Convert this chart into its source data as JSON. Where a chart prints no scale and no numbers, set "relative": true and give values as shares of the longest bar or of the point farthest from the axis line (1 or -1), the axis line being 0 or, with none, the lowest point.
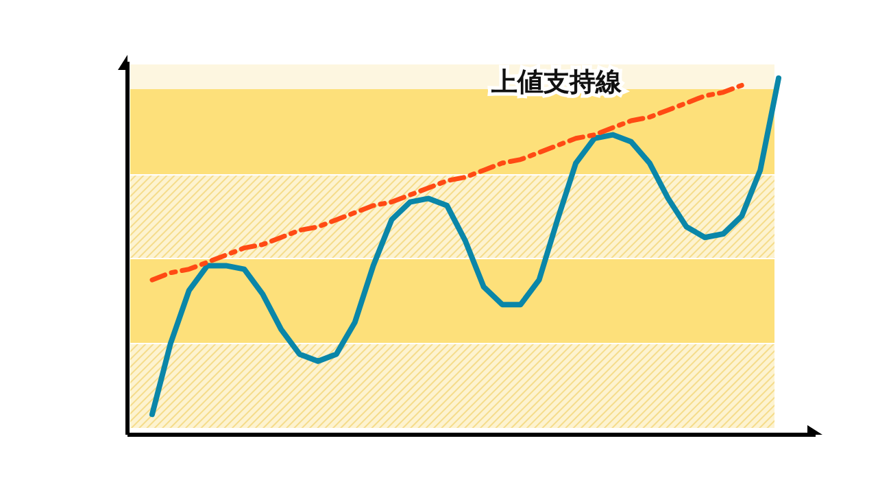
{
  "chart_data": {
    "type": "line",
    "relative": true,
    "categories": [
      null,
      null,
      null,
      null,
      null,
      null,
      null,
      null,
      null,
      null,
      null,
      null,
      null,
      null,
      null,
      null,
      null,
      null,
      null,
      null,
      null,
      null,
      null,
      null,
      null,
      null,
      null,
      null,
      null,
      null,
      null,
      null,
      null,
      null,
      null
    ],
    "series": [
      {
        "color": "#0a86a8",
        "values": [
          0.05,
          0.25,
          0.4,
          0.47,
          0.47,
          0.46,
          0.39,
          0.29,
          0.22,
          0.2,
          0.22,
          0.31,
          0.47,
          0.6,
          0.65,
          0.66,
          0.64,
          0.54,
          0.41,
          0.36,
          0.36,
          0.43,
          0.6,
          0.76,
          0.83,
          0.84,
          0.82,
          0.76,
          0.66,
          0.58,
          0.55,
          0.56,
          0.61,
          0.74,
          1.0
        ]
      },
      {
        "name": "上値支持線",
        "color": "#ff4a14",
        "line_style": "dashed",
        "values": [
          0.43,
          0.45,
          0.46,
          0.48,
          0.5,
          0.52,
          0.53,
          0.55,
          0.57,
          0.58,
          0.6,
          0.62,
          0.64,
          0.65,
          0.67,
          0.69,
          0.71,
          0.72,
          0.74,
          0.76,
          0.77,
          0.79,
          0.81,
          0.83,
          0.84,
          0.86,
          0.88,
          0.89,
          0.91,
          0.93,
          0.95,
          0.96,
          0.98,
          null,
          null
        ]
      }
    ]
  }
}
